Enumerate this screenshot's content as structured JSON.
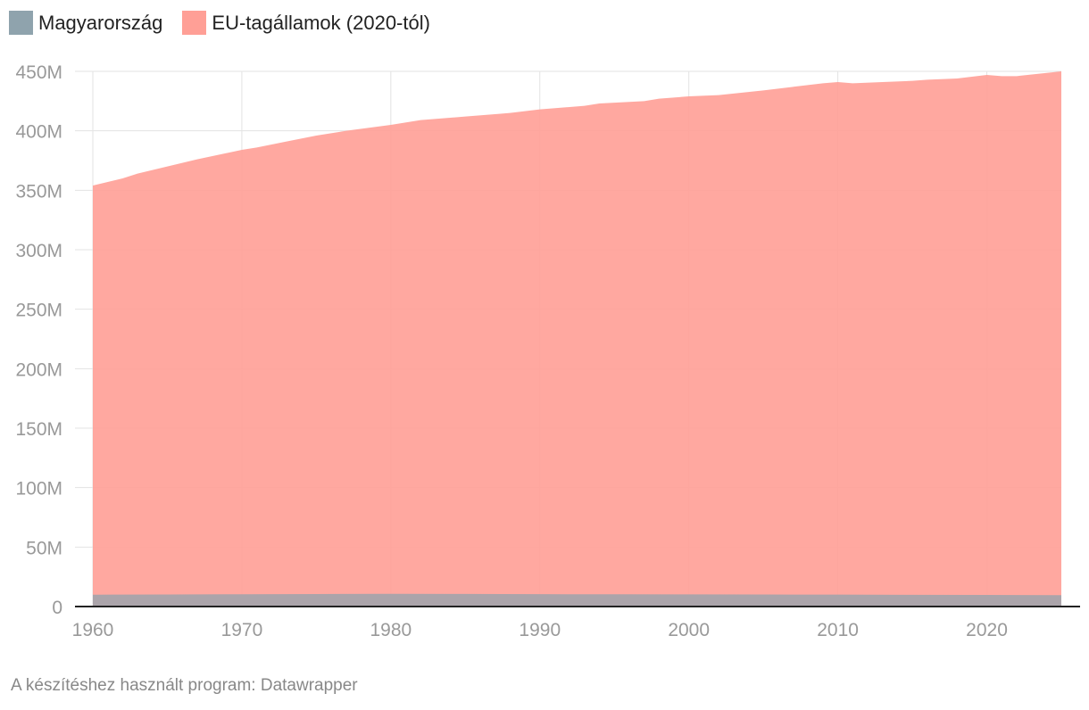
{
  "chart_data": {
    "type": "area",
    "stacked": false,
    "series": [
      {
        "name": "Magyarország",
        "color": "#8fa3ad",
        "x": [
          1960,
          1965,
          1970,
          1975,
          1980,
          1985,
          1990,
          1995,
          2000,
          2005,
          2010,
          2015,
          2020,
          2025
        ],
        "values": [
          9.98,
          10.14,
          10.32,
          10.52,
          10.71,
          10.58,
          10.37,
          10.33,
          10.21,
          10.09,
          10.0,
          9.86,
          9.75,
          9.58
        ]
      },
      {
        "name": "EU-tagállamok (2020-tól)",
        "color": "#ff9f96",
        "x": [
          1960,
          1962,
          1963,
          1965,
          1967,
          1970,
          1971,
          1973,
          1975,
          1977,
          1980,
          1982,
          1985,
          1988,
          1990,
          1993,
          1994,
          1997,
          1998,
          2000,
          2002,
          2005,
          2007,
          2009,
          2010,
          2011,
          2013,
          2015,
          2016,
          2018,
          2020,
          2021,
          2022,
          2025
        ],
        "values": [
          354,
          360,
          364,
          370,
          376,
          384,
          386,
          391,
          396,
          400,
          405,
          409,
          412,
          415,
          418,
          421,
          423,
          425,
          427,
          429,
          430,
          434,
          437,
          440,
          441,
          440,
          441,
          442,
          443,
          444,
          447,
          446,
          446,
          450
        ]
      }
    ],
    "xlim": [
      1960,
      2025
    ],
    "ylim": [
      0,
      450
    ],
    "x_ticks": [
      1960,
      1970,
      1980,
      1990,
      2000,
      2010,
      2020
    ],
    "y_ticks": [
      0,
      50,
      100,
      150,
      200,
      250,
      300,
      350,
      400,
      450
    ],
    "x_tick_labels": [
      "1960",
      "1970",
      "1980",
      "1990",
      "2000",
      "2010",
      "2020"
    ],
    "y_tick_labels": [
      "0",
      "50M",
      "100M",
      "150M",
      "200M",
      "250M",
      "300M",
      "350M",
      "400M",
      "450M"
    ],
    "legend_position": "top-left",
    "grid": true
  },
  "legend": {
    "items": [
      {
        "label": "Magyarország",
        "color": "#8fa3ad"
      },
      {
        "label": "EU-tagállamok (2020-tól)",
        "color": "#ff9f96"
      }
    ]
  },
  "footer": {
    "text": "A készítéshez használt program: Datawrapper"
  }
}
